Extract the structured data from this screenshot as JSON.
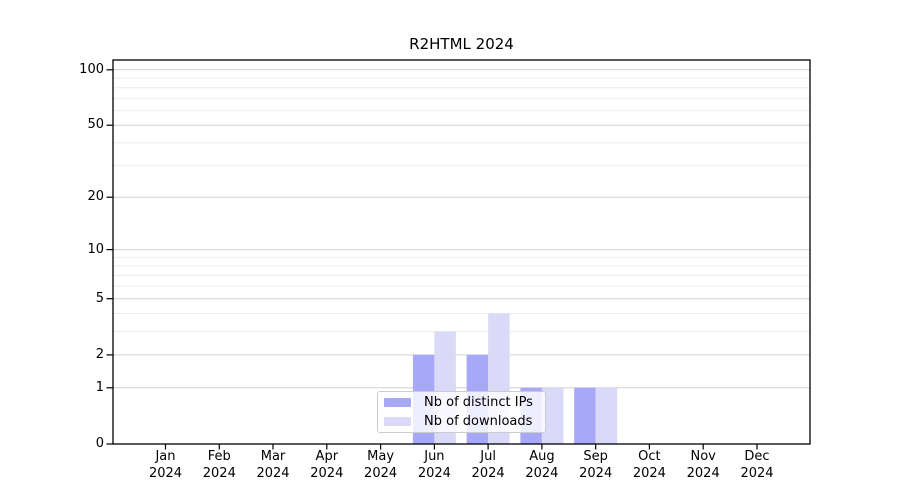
{
  "chart_data": {
    "type": "bar",
    "title": "R2HTML 2024",
    "categories": [
      "Jan",
      "Feb",
      "Mar",
      "Apr",
      "May",
      "Jun",
      "Jul",
      "Aug",
      "Sep",
      "Oct",
      "Nov",
      "Dec"
    ],
    "year": "2024",
    "series": [
      {
        "name": "Nb of distinct IPs",
        "color": "#a8a8f8",
        "values": [
          0,
          0,
          0,
          0,
          0,
          2,
          2,
          1,
          1,
          0,
          0,
          0
        ]
      },
      {
        "name": "Nb of downloads",
        "color": "#dadaf8",
        "values": [
          0,
          0,
          0,
          0,
          0,
          3,
          4,
          1,
          1,
          0,
          0,
          0
        ]
      }
    ],
    "xlabel": "",
    "ylabel": "",
    "y_axis": {
      "scale": "log1p",
      "ticks": [
        0,
        1,
        2,
        5,
        10,
        20,
        50,
        100
      ],
      "minor_ticks": [
        3,
        4,
        6,
        7,
        8,
        9,
        30,
        40,
        60,
        70,
        80,
        90
      ],
      "lim": [
        0,
        113
      ]
    },
    "legend_position": "inside-bottom-center",
    "grid": {
      "horizontal_major": true,
      "horizontal_minor": true
    },
    "colors": {
      "axis": "#000000",
      "grid_major": "#d0d0d0",
      "grid_minor": "#ebebeb",
      "legend_border": "#cccccc"
    }
  }
}
